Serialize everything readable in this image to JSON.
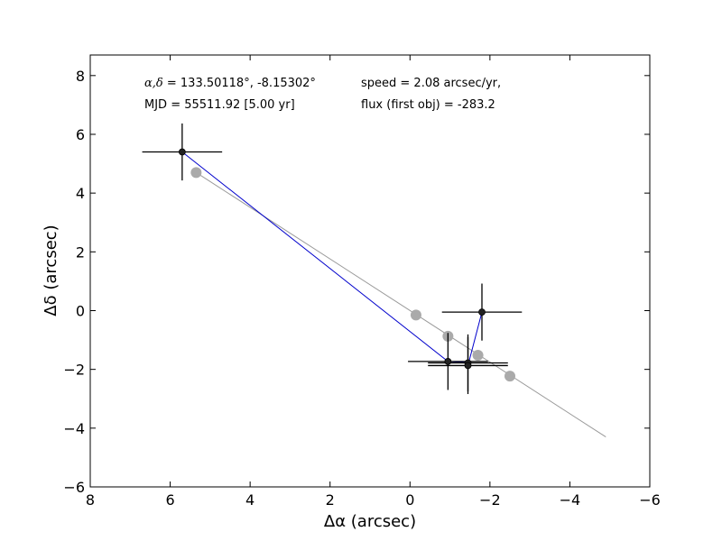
{
  "chart_data": {
    "type": "scatter",
    "xlabel": "Δα (arcsec)",
    "ylabel": "Δδ (arcsec)",
    "xlim": [
      8,
      -6
    ],
    "ylim": [
      -6,
      8.7
    ],
    "xticks": [
      8,
      6,
      4,
      2,
      0,
      -2,
      -4,
      -6
    ],
    "yticks": [
      -6,
      -4,
      -2,
      0,
      2,
      4,
      6,
      8
    ],
    "xtick_labels": [
      "8",
      "6",
      "4",
      "2",
      "0",
      "−2",
      "−4",
      "−6"
    ],
    "ytick_labels": [
      "−6",
      "−4",
      "−2",
      "0",
      "2",
      "4",
      "6",
      "8"
    ],
    "grid": false,
    "annotations": {
      "coords_symbol": "α,δ",
      "coords_value": " = 133.50118°, -8.15302°",
      "mjd": "MJD = 55511.92 [5.00 yr]",
      "speed": "speed = 2.08 arcsec/yr,",
      "flux": "flux (first obj) = -283.2"
    },
    "model_line": {
      "color": "#999999",
      "x": [
        5.35,
        -4.9
      ],
      "y": [
        4.7,
        -4.3
      ]
    },
    "model_points": {
      "color": "#aaaaaa",
      "x": [
        5.35,
        -0.15,
        -0.95,
        -1.7,
        -2.5
      ],
      "y": [
        4.7,
        -0.15,
        -0.87,
        -1.52,
        -2.23
      ]
    },
    "observations": {
      "line_color": "#0000cc",
      "marker_color": "#222222",
      "errorbar_color": "#000000",
      "points": [
        {
          "x": 5.7,
          "y": 5.4,
          "xerr": 1.0,
          "yerr": 0.97
        },
        {
          "x": -0.95,
          "y": -1.73,
          "xerr": 1.0,
          "yerr": 0.97
        },
        {
          "x": -1.45,
          "y": -1.78,
          "xerr": 1.0,
          "yerr": 0.97
        },
        {
          "x": -1.45,
          "y": -1.87,
          "xerr": 1.0,
          "yerr": 0.97
        },
        {
          "x": -1.8,
          "y": -0.05,
          "xerr": 1.0,
          "yerr": 0.97
        }
      ]
    }
  }
}
